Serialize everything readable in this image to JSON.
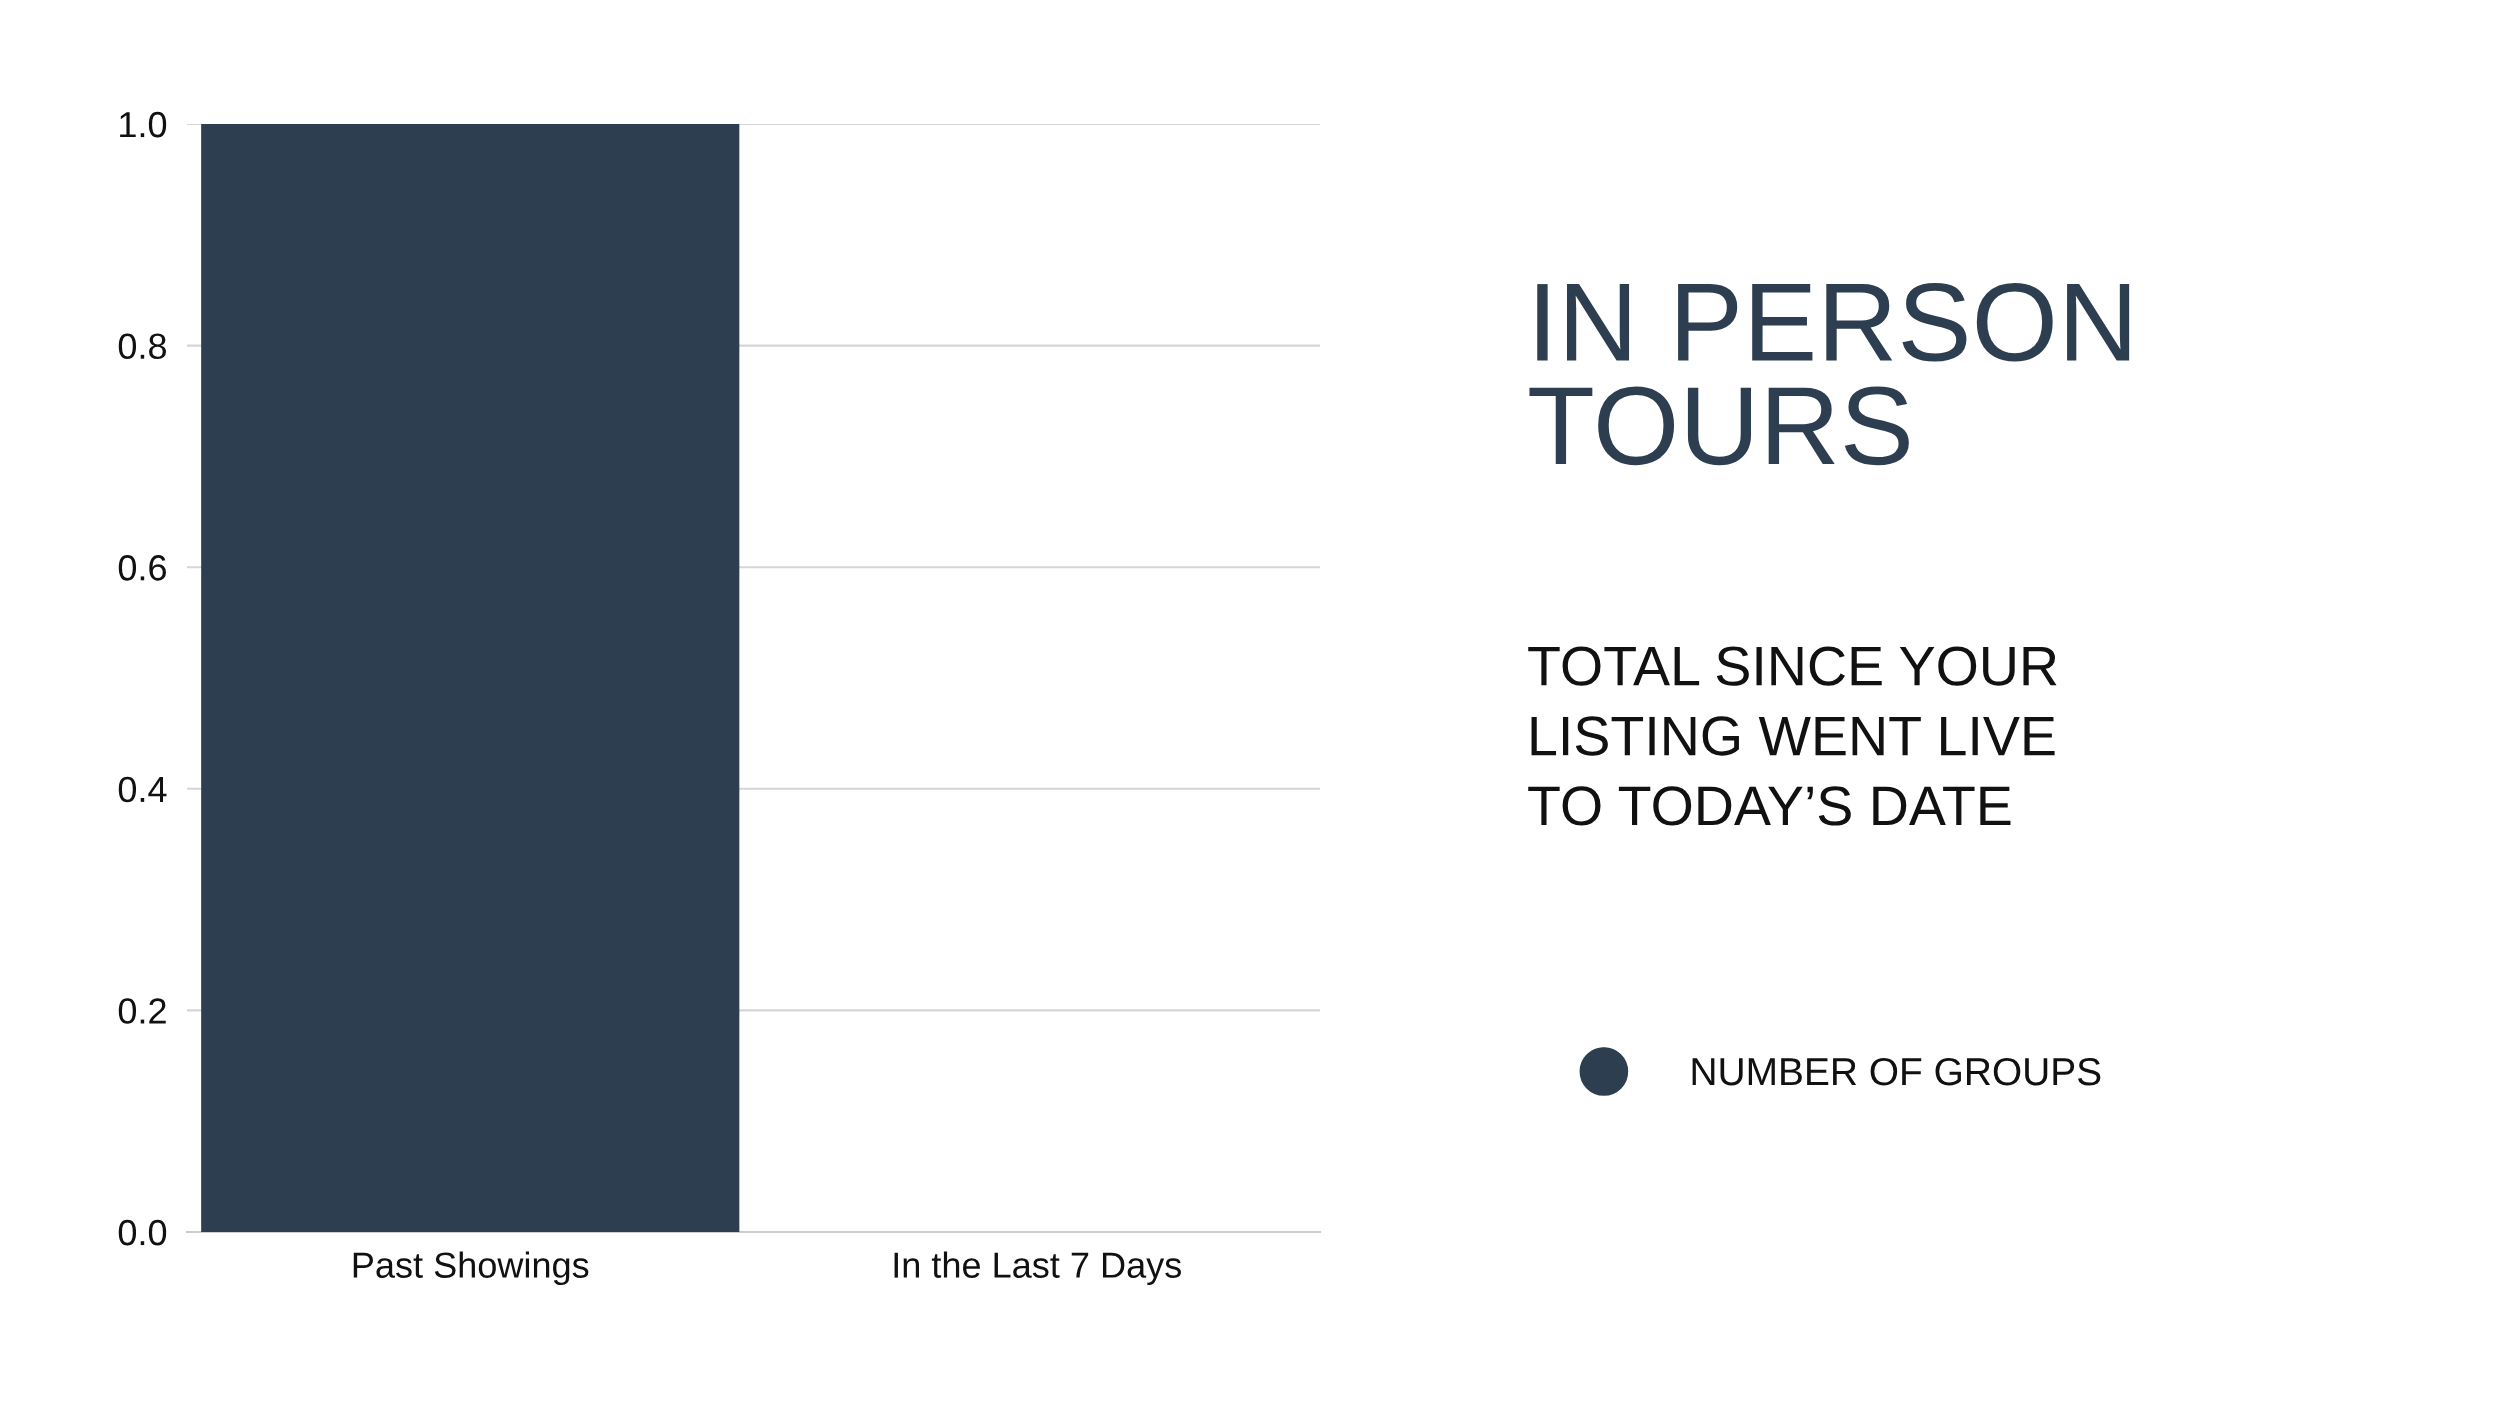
{
  "chart_data": {
    "type": "bar",
    "title": "IN PERSON TOURS",
    "subtitle": "TOTAL SINCE YOUR\nLISTING WENT LIVE\nTO TODAY’S DATE",
    "categories": [
      "Past Showings",
      "In the Last 7 Days"
    ],
    "series": [
      {
        "name": "NUMBER OF GROUPS",
        "color": "#2c3e50",
        "values": [
          1.0,
          0
        ]
      }
    ],
    "ylim": [
      0,
      1.0
    ],
    "yticks": [
      {
        "value": 0,
        "label": "0.0"
      },
      0.2,
      0.4,
      0.6,
      0.8,
      {
        "value": 1,
        "label": "1.0"
      }
    ],
    "grid": "y",
    "legend": "right"
  }
}
